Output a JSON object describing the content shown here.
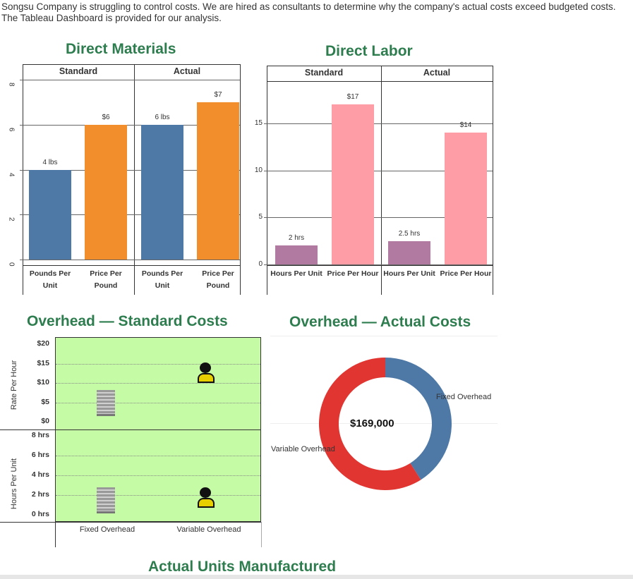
{
  "intro": "Songsu Company is struggling to control costs. We are hired as consultants to determine why the company's actual costs exceed budgeted costs. The Tableau Dashboard is provided for our analysis.",
  "chart_data": [
    {
      "type": "bar",
      "title": "Direct Materials",
      "groups": [
        "Standard",
        "Actual"
      ],
      "categories": [
        "Pounds Per Unit",
        "Price Per Pound",
        "Pounds Per Unit",
        "Price Per Pound"
      ],
      "values": [
        4,
        6,
        6,
        7
      ],
      "labels": [
        "4 lbs",
        "$6",
        "6 lbs",
        "$7"
      ],
      "colors": [
        "#4e79a7",
        "#f28e2b",
        "#4e79a7",
        "#f28e2b"
      ],
      "ylim": [
        0,
        8
      ],
      "yticks": [
        "0",
        "2",
        "4",
        "6",
        "8"
      ]
    },
    {
      "type": "bar",
      "title": "Direct Labor",
      "groups": [
        "Standard",
        "Actual"
      ],
      "categories": [
        "Hours Per Unit",
        "Price Per Hour",
        "Hours Per Unit",
        "Price Per Hour"
      ],
      "values": [
        2,
        17,
        2.5,
        14
      ],
      "labels": [
        "2 hrs",
        "$17",
        "2.5 hrs",
        "$14"
      ],
      "colors": [
        "#b07aa1",
        "#ff9da7",
        "#b07aa1",
        "#ff9da7"
      ],
      "ylim": [
        0,
        19.5
      ],
      "yticks": [
        "0",
        "5",
        "10",
        "15"
      ]
    },
    {
      "type": "scatter",
      "title": "Overhead — Standard Costs",
      "categories": [
        "Fixed Overhead",
        "Variable Overhead"
      ],
      "rate_axis": {
        "label": "Rate Per Hour",
        "ticks": [
          "$0",
          "$5",
          "$10",
          "$15",
          "$20"
        ],
        "values": [
          5,
          12
        ]
      },
      "hours_axis": {
        "label": "Hours Per Unit",
        "ticks": [
          "0 hrs",
          "2 hrs",
          "4 hrs",
          "6 hrs",
          "8 hrs"
        ],
        "values": [
          1.5,
          1.5
        ]
      }
    },
    {
      "type": "pie",
      "title": "Overhead — Actual Costs",
      "center_label": "$169,000",
      "slices": [
        {
          "name": "Fixed Overhead",
          "share": 0.41,
          "color": "#4e79a7"
        },
        {
          "name": "Variable Overhead",
          "share": 0.59,
          "color": "#e03531"
        }
      ]
    }
  ],
  "footer": "Actual Units Manufactured"
}
